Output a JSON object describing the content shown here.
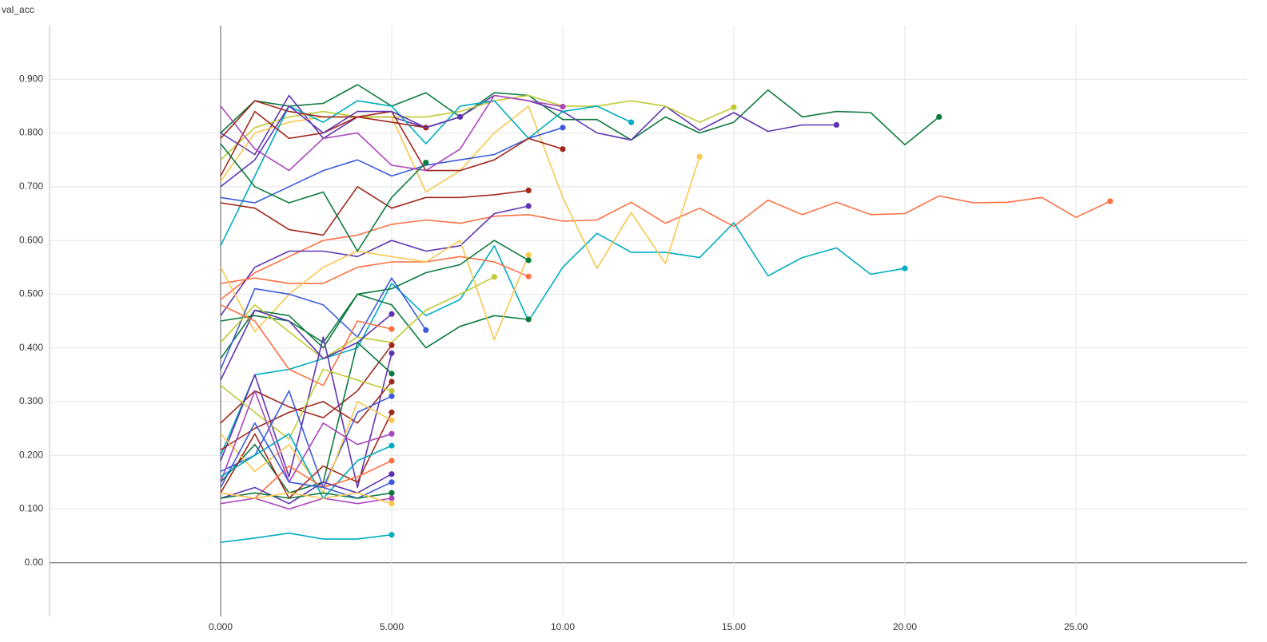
{
  "chart_data": {
    "type": "line",
    "title": "val_acc",
    "xlim": [
      -5,
      30
    ],
    "xticks": [
      {
        "value": 0,
        "label": "0.000"
      },
      {
        "value": 5,
        "label": "5.000"
      },
      {
        "value": 10,
        "label": "10.00"
      },
      {
        "value": 15,
        "label": "15.00"
      },
      {
        "value": 20,
        "label": "20.00"
      },
      {
        "value": 25,
        "label": "25.00"
      }
    ],
    "ylim": [
      -0.1,
      1.0
    ],
    "yticks": [
      {
        "value": 0,
        "label": "0.00"
      },
      {
        "value": 0.1,
        "label": "0.100"
      },
      {
        "value": 0.2,
        "label": "0.200"
      },
      {
        "value": 0.3,
        "label": "0.300"
      },
      {
        "value": 0.4,
        "label": "0.400"
      },
      {
        "value": 0.5,
        "label": "0.500"
      },
      {
        "value": 0.6,
        "label": "0.600"
      },
      {
        "value": 0.7,
        "label": "0.700"
      },
      {
        "value": 0.8,
        "label": "0.800"
      },
      {
        "value": 0.9,
        "label": "0.900"
      }
    ],
    "grid": true,
    "series": [
      {
        "color": "#0b7a3e",
        "x": [
          0,
          1,
          2,
          3,
          4,
          5,
          6,
          7,
          8,
          9,
          10,
          11,
          12,
          13,
          14,
          15,
          16,
          17,
          18,
          19,
          20,
          21
        ],
        "values": [
          0.8,
          0.86,
          0.85,
          0.855,
          0.89,
          0.85,
          0.875,
          0.83,
          0.875,
          0.87,
          0.825,
          0.825,
          0.787,
          0.83,
          0.8,
          0.82,
          0.88,
          0.83,
          0.84,
          0.838,
          0.778,
          0.83
        ]
      },
      {
        "color": "#5e35b1",
        "x": [
          0,
          1,
          2,
          3,
          4,
          5,
          6,
          7,
          8,
          9,
          10,
          11,
          12,
          13,
          14,
          15,
          16,
          17,
          18
        ],
        "values": [
          0.8,
          0.76,
          0.87,
          0.79,
          0.83,
          0.83,
          0.81,
          0.83,
          0.87,
          0.86,
          0.84,
          0.8,
          0.787,
          0.85,
          0.805,
          0.838,
          0.803,
          0.815,
          0.815
        ]
      },
      {
        "color": "#ff7043",
        "x": [
          0,
          1,
          2,
          3,
          4,
          5,
          6,
          7,
          8,
          9,
          10,
          11,
          12,
          13,
          14,
          15,
          16,
          17,
          18,
          19,
          20,
          21,
          22,
          23,
          24,
          25,
          26
        ],
        "values": [
          0.49,
          0.54,
          0.57,
          0.6,
          0.61,
          0.63,
          0.638,
          0.632,
          0.645,
          0.648,
          0.636,
          0.638,
          0.671,
          0.632,
          0.66,
          0.626,
          0.675,
          0.648,
          0.671,
          0.648,
          0.65,
          0.683,
          0.67,
          0.671,
          0.68,
          0.643,
          0.673
        ]
      },
      {
        "color": "#00acc1",
        "x": [
          0,
          1,
          2,
          3,
          4,
          5,
          6,
          7,
          8,
          9,
          10,
          11,
          12,
          13,
          14,
          15,
          16,
          17,
          18,
          19,
          20
        ],
        "values": [
          0.2,
          0.35,
          0.36,
          0.38,
          0.4,
          0.52,
          0.46,
          0.49,
          0.59,
          0.45,
          0.55,
          0.613,
          0.578,
          0.578,
          0.568,
          0.633,
          0.534,
          0.568,
          0.586,
          0.537,
          0.548
        ]
      },
      {
        "color": "#f9c74f",
        "x": [
          0,
          1,
          2,
          3,
          4,
          5,
          6,
          7,
          8,
          9,
          10,
          11,
          12,
          13,
          14
        ],
        "values": [
          0.71,
          0.8,
          0.82,
          0.83,
          0.83,
          0.83,
          0.69,
          0.73,
          0.8,
          0.85,
          0.68,
          0.548,
          0.652,
          0.557,
          0.756
        ]
      },
      {
        "color": "#c0ca33",
        "x": [
          0,
          1,
          2,
          3,
          4,
          5,
          6,
          7,
          8,
          9,
          10,
          11,
          12,
          13,
          14,
          15
        ],
        "values": [
          0.75,
          0.81,
          0.83,
          0.84,
          0.83,
          0.83,
          0.83,
          0.84,
          0.86,
          0.87,
          0.85,
          0.85,
          0.86,
          0.85,
          0.82,
          0.848
        ]
      },
      {
        "color": "#00acc1",
        "x": [
          0,
          1,
          2,
          3,
          4,
          5,
          6,
          7,
          8,
          9,
          10,
          11,
          12
        ],
        "values": [
          0.59,
          0.72,
          0.85,
          0.82,
          0.86,
          0.85,
          0.78,
          0.85,
          0.86,
          0.79,
          0.84,
          0.85,
          0.82
        ]
      },
      {
        "color": "#3b5bdb",
        "x": [
          0,
          1,
          2,
          3,
          4,
          5,
          6,
          7,
          8,
          9,
          10
        ],
        "values": [
          0.68,
          0.67,
          0.7,
          0.73,
          0.75,
          0.72,
          0.74,
          0.75,
          0.76,
          0.79,
          0.81
        ]
      },
      {
        "color": "#a0281c",
        "x": [
          0,
          1,
          2,
          3,
          4,
          5,
          6,
          7,
          8,
          9,
          10
        ],
        "values": [
          0.72,
          0.84,
          0.79,
          0.8,
          0.83,
          0.84,
          0.73,
          0.73,
          0.75,
          0.79,
          0.77
        ]
      },
      {
        "color": "#ab47bc",
        "x": [
          0,
          1,
          2,
          3,
          4,
          5,
          6,
          7,
          8,
          9,
          10
        ],
        "values": [
          0.85,
          0.77,
          0.73,
          0.79,
          0.8,
          0.74,
          0.73,
          0.77,
          0.87,
          0.86,
          0.849
        ]
      },
      {
        "color": "#0b7a3e",
        "x": [
          0,
          1,
          2,
          3,
          4,
          5,
          6,
          7,
          8,
          9
        ],
        "values": [
          0.45,
          0.46,
          0.45,
          0.41,
          0.5,
          0.48,
          0.4,
          0.44,
          0.46,
          0.453
        ]
      },
      {
        "color": "#a0281c",
        "x": [
          0,
          1,
          2,
          3,
          4,
          5,
          6,
          7,
          8,
          9
        ],
        "values": [
          0.67,
          0.66,
          0.62,
          0.61,
          0.7,
          0.66,
          0.68,
          0.68,
          0.685,
          0.693
        ]
      },
      {
        "color": "#5e35b1",
        "x": [
          0,
          1,
          2,
          3,
          4,
          5,
          6,
          7,
          8,
          9
        ],
        "values": [
          0.46,
          0.55,
          0.58,
          0.58,
          0.57,
          0.6,
          0.58,
          0.59,
          0.65,
          0.664
        ]
      },
      {
        "color": "#ff7043",
        "x": [
          0,
          1,
          2,
          3,
          4,
          5,
          6,
          7,
          8,
          9
        ],
        "values": [
          0.52,
          0.53,
          0.52,
          0.52,
          0.55,
          0.56,
          0.56,
          0.57,
          0.56,
          0.533
        ]
      },
      {
        "color": "#f9c74f",
        "x": [
          0,
          1,
          2,
          3,
          4,
          5,
          6,
          7,
          8,
          9
        ],
        "values": [
          0.55,
          0.43,
          0.5,
          0.55,
          0.58,
          0.57,
          0.56,
          0.6,
          0.415,
          0.573
        ]
      },
      {
        "color": "#0b7a3e",
        "x": [
          0,
          1,
          2,
          3,
          4,
          5,
          6,
          7,
          8,
          9
        ],
        "values": [
          0.38,
          0.47,
          0.46,
          0.4,
          0.5,
          0.51,
          0.54,
          0.555,
          0.6,
          0.563
        ]
      },
      {
        "color": "#3b5bdb",
        "x": [
          0,
          1,
          2,
          3,
          4,
          5,
          6
        ],
        "values": [
          0.36,
          0.51,
          0.5,
          0.48,
          0.42,
          0.53,
          0.433
        ]
      },
      {
        "color": "#00acc1",
        "x": [
          0,
          1,
          2,
          3,
          4,
          5
        ],
        "values": [
          0.038,
          0.046,
          0.055,
          0.044,
          0.044,
          0.052
        ]
      },
      {
        "color": "#c0ca33",
        "x": [
          0,
          1,
          2,
          3,
          4,
          5,
          6,
          7,
          8
        ],
        "values": [
          0.41,
          0.48,
          0.43,
          0.38,
          0.42,
          0.41,
          0.47,
          0.5,
          0.532
        ]
      },
      {
        "color": "#a0281c",
        "x": [
          0,
          1,
          2,
          3,
          4,
          5,
          6
        ],
        "values": [
          0.79,
          0.86,
          0.84,
          0.83,
          0.83,
          0.82,
          0.81
        ]
      },
      {
        "color": "#5e35b1",
        "x": [
          0,
          1,
          2,
          3,
          4,
          5,
          6,
          7
        ],
        "values": [
          0.7,
          0.75,
          0.85,
          0.8,
          0.84,
          0.84,
          0.81,
          0.83
        ]
      },
      {
        "color": "#0b7a3e",
        "x": [
          0,
          1,
          2,
          3,
          4,
          5,
          6
        ],
        "values": [
          0.78,
          0.7,
          0.67,
          0.69,
          0.58,
          0.68,
          0.745
        ]
      },
      {
        "color": "#5e35b1",
        "x": [
          0,
          1,
          2,
          3,
          4,
          5
        ],
        "values": [
          0.34,
          0.47,
          0.45,
          0.38,
          0.41,
          0.463
        ]
      },
      {
        "color": "#ff7043",
        "x": [
          0,
          1,
          2,
          3,
          4,
          5
        ],
        "values": [
          0.48,
          0.45,
          0.36,
          0.33,
          0.45,
          0.435
        ]
      },
      {
        "color": "#a0281c",
        "x": [
          0,
          1,
          2,
          3,
          4,
          5
        ],
        "values": [
          0.26,
          0.32,
          0.29,
          0.27,
          0.32,
          0.405
        ]
      },
      {
        "color": "#5e35b1",
        "x": [
          0,
          1,
          2,
          3,
          4,
          5
        ],
        "values": [
          0.19,
          0.35,
          0.16,
          0.42,
          0.14,
          0.39
        ]
      },
      {
        "color": "#0b7a3e",
        "x": [
          0,
          1,
          2,
          3,
          4,
          5
        ],
        "values": [
          0.15,
          0.22,
          0.13,
          0.15,
          0.41,
          0.352
        ]
      },
      {
        "color": "#a0281c",
        "x": [
          0,
          1,
          2,
          3,
          4,
          5
        ],
        "values": [
          0.21,
          0.25,
          0.28,
          0.3,
          0.26,
          0.337
        ]
      },
      {
        "color": "#c0ca33",
        "x": [
          0,
          1,
          2,
          3,
          4,
          5
        ],
        "values": [
          0.33,
          0.28,
          0.23,
          0.36,
          0.34,
          0.32
        ]
      },
      {
        "color": "#3b5bdb",
        "x": [
          0,
          1,
          2,
          3,
          4,
          5
        ],
        "values": [
          0.17,
          0.2,
          0.32,
          0.14,
          0.28,
          0.31
        ]
      },
      {
        "color": "#a0281c",
        "x": [
          0,
          1,
          2,
          3,
          4,
          5
        ],
        "values": [
          0.13,
          0.24,
          0.12,
          0.18,
          0.15,
          0.28
        ]
      },
      {
        "color": "#f9c74f",
        "x": [
          0,
          1,
          2,
          3,
          4,
          5
        ],
        "values": [
          0.24,
          0.17,
          0.22,
          0.13,
          0.3,
          0.265
        ]
      },
      {
        "color": "#ab47bc",
        "x": [
          0,
          1,
          2,
          3,
          4,
          5
        ],
        "values": [
          0.15,
          0.32,
          0.15,
          0.26,
          0.22,
          0.24
        ]
      },
      {
        "color": "#00acc1",
        "x": [
          0,
          1,
          2,
          3,
          4,
          5
        ],
        "values": [
          0.16,
          0.2,
          0.24,
          0.12,
          0.19,
          0.218
        ]
      },
      {
        "color": "#ff7043",
        "x": [
          0,
          1,
          2,
          3,
          4,
          5
        ],
        "values": [
          0.13,
          0.12,
          0.18,
          0.14,
          0.16,
          0.19
        ]
      },
      {
        "color": "#5e35b1",
        "x": [
          0,
          1,
          2,
          3,
          4,
          5
        ],
        "values": [
          0.12,
          0.14,
          0.11,
          0.15,
          0.13,
          0.165
        ]
      },
      {
        "color": "#3b5bdb",
        "x": [
          0,
          1,
          2,
          3,
          4,
          5
        ],
        "values": [
          0.14,
          0.26,
          0.15,
          0.14,
          0.12,
          0.15
        ]
      },
      {
        "color": "#0b7a3e",
        "x": [
          0,
          1,
          2,
          3,
          4,
          5
        ],
        "values": [
          0.12,
          0.13,
          0.12,
          0.13,
          0.12,
          0.13
        ]
      },
      {
        "color": "#ab47bc",
        "x": [
          0,
          1,
          2,
          3,
          4,
          5
        ],
        "values": [
          0.11,
          0.12,
          0.1,
          0.12,
          0.11,
          0.12
        ]
      },
      {
        "color": "#f9c74f",
        "x": [
          0,
          1,
          2,
          3,
          4,
          5
        ],
        "values": [
          0.13,
          0.12,
          0.13,
          0.12,
          0.13,
          0.11
        ]
      }
    ]
  }
}
